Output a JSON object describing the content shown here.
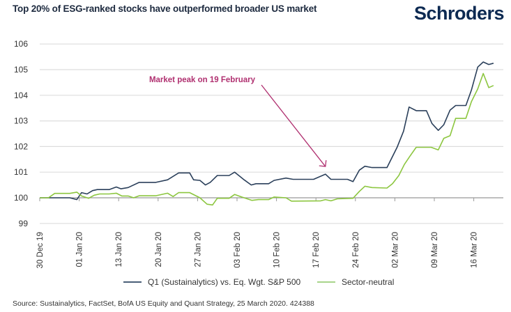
{
  "chart_data": {
    "type": "line",
    "title": "Top 20% of ESG-ranked stocks have outperformed broader US market",
    "xlabel": "",
    "ylabel": "",
    "x_unit": "trading days since 30 Dec 2019",
    "ylim": [
      99,
      106
    ],
    "yticks": [
      99,
      100,
      101,
      102,
      103,
      104,
      105,
      106
    ],
    "xticks": [
      {
        "x": 0,
        "label": "30 Dec 19"
      },
      {
        "x": 5,
        "label": "01 Jan 20"
      },
      {
        "x": 10,
        "label": "13 Jan 20"
      },
      {
        "x": 15,
        "label": "20 Jan 20"
      },
      {
        "x": 20,
        "label": "27 Jan 20"
      },
      {
        "x": 25,
        "label": "03 Feb 20"
      },
      {
        "x": 30,
        "label": "10 Feb 20"
      },
      {
        "x": 35,
        "label": "17 Feb 20"
      },
      {
        "x": 40,
        "label": "24 Feb 20"
      },
      {
        "x": 45,
        "label": "02 Mar 20"
      },
      {
        "x": 50,
        "label": "09 Mar 20"
      },
      {
        "x": 55,
        "label": "16 Mar 20"
      }
    ],
    "xlim": [
      0,
      58.8
    ],
    "grid": true,
    "legend_position": "bottom",
    "series": [
      {
        "name": "Q1 (Sustainalytics) vs. Eq. Wgt. S&P 500",
        "color": "#2a3f5a",
        "points": [
          [
            0,
            100.0
          ],
          [
            3.8,
            100.0
          ],
          [
            4.7,
            99.93
          ],
          [
            5.3,
            100.2
          ],
          [
            6.0,
            100.15
          ],
          [
            6.7,
            100.28
          ],
          [
            7.3,
            100.32
          ],
          [
            8.8,
            100.32
          ],
          [
            9.7,
            100.42
          ],
          [
            10.3,
            100.35
          ],
          [
            11.2,
            100.4
          ],
          [
            12.6,
            100.6
          ],
          [
            14.7,
            100.6
          ],
          [
            16.2,
            100.7
          ],
          [
            17.6,
            100.97
          ],
          [
            19.0,
            100.97
          ],
          [
            19.5,
            100.7
          ],
          [
            20.3,
            100.68
          ],
          [
            21.0,
            100.5
          ],
          [
            21.6,
            100.6
          ],
          [
            22.5,
            100.87
          ],
          [
            24.0,
            100.87
          ],
          [
            24.7,
            101.0
          ],
          [
            25.9,
            100.7
          ],
          [
            26.8,
            100.5
          ],
          [
            27.4,
            100.55
          ],
          [
            29.0,
            100.55
          ],
          [
            29.7,
            100.68
          ],
          [
            31.2,
            100.77
          ],
          [
            32.1,
            100.72
          ],
          [
            34.7,
            100.72
          ],
          [
            36.2,
            100.92
          ],
          [
            36.9,
            100.72
          ],
          [
            39.0,
            100.72
          ],
          [
            39.7,
            100.63
          ],
          [
            40.5,
            101.08
          ],
          [
            41.2,
            101.23
          ],
          [
            42.1,
            101.18
          ],
          [
            44.0,
            101.18
          ],
          [
            45.3,
            101.98
          ],
          [
            46.1,
            102.6
          ],
          [
            46.8,
            103.54
          ],
          [
            47.7,
            103.4
          ],
          [
            49.0,
            103.4
          ],
          [
            49.7,
            102.9
          ],
          [
            50.5,
            102.63
          ],
          [
            51.2,
            102.85
          ],
          [
            52.0,
            103.42
          ],
          [
            52.7,
            103.6
          ],
          [
            54.0,
            103.6
          ],
          [
            54.7,
            104.2
          ],
          [
            55.5,
            105.1
          ],
          [
            56.2,
            105.3
          ],
          [
            56.9,
            105.2
          ],
          [
            57.5,
            105.25
          ]
        ]
      },
      {
        "name": "Sector-neutral",
        "color": "#8cc63f",
        "points": [
          [
            0,
            100.0
          ],
          [
            1.1,
            100.0
          ],
          [
            1.9,
            100.17
          ],
          [
            3.8,
            100.17
          ],
          [
            4.7,
            100.22
          ],
          [
            5.3,
            100.07
          ],
          [
            6.2,
            99.98
          ],
          [
            6.9,
            100.1
          ],
          [
            7.6,
            100.15
          ],
          [
            8.8,
            100.15
          ],
          [
            9.7,
            100.18
          ],
          [
            10.4,
            100.07
          ],
          [
            11.2,
            100.07
          ],
          [
            11.9,
            100.0
          ],
          [
            12.6,
            100.08
          ],
          [
            14.7,
            100.08
          ],
          [
            16.2,
            100.18
          ],
          [
            16.9,
            100.05
          ],
          [
            17.6,
            100.2
          ],
          [
            19.0,
            100.2
          ],
          [
            20.3,
            100.0
          ],
          [
            21.2,
            99.75
          ],
          [
            21.9,
            99.72
          ],
          [
            22.5,
            99.98
          ],
          [
            24.0,
            99.98
          ],
          [
            24.7,
            100.13
          ],
          [
            25.6,
            100.03
          ],
          [
            26.9,
            99.9
          ],
          [
            27.7,
            99.93
          ],
          [
            29.0,
            99.93
          ],
          [
            29.7,
            100.03
          ],
          [
            31.2,
            100.0
          ],
          [
            31.9,
            99.87
          ],
          [
            35.6,
            99.88
          ],
          [
            36.2,
            99.93
          ],
          [
            36.9,
            99.88
          ],
          [
            37.7,
            99.96
          ],
          [
            39.7,
            99.98
          ],
          [
            40.5,
            100.25
          ],
          [
            41.2,
            100.45
          ],
          [
            42.1,
            100.4
          ],
          [
            44.0,
            100.38
          ],
          [
            44.7,
            100.55
          ],
          [
            45.5,
            100.87
          ],
          [
            46.2,
            101.3
          ],
          [
            46.9,
            101.62
          ],
          [
            47.7,
            101.97
          ],
          [
            49.6,
            101.97
          ],
          [
            50.5,
            101.87
          ],
          [
            51.2,
            102.32
          ],
          [
            52.0,
            102.42
          ],
          [
            52.7,
            103.1
          ],
          [
            54.0,
            103.1
          ],
          [
            54.7,
            103.75
          ],
          [
            55.5,
            104.25
          ],
          [
            56.2,
            104.85
          ],
          [
            56.9,
            104.3
          ],
          [
            57.5,
            104.38
          ]
        ]
      }
    ],
    "annotations": [
      {
        "text": "Market peak on 19 February",
        "color": "#b03070",
        "arrow_to": {
          "x": 36.2,
          "y": 100.95
        }
      }
    ]
  },
  "header": {
    "logo": "Schroders"
  },
  "source": "Source: Sustainalytics, FactSet, BofA US Equity and Quant Strategy, 25 March 2020. 424388"
}
